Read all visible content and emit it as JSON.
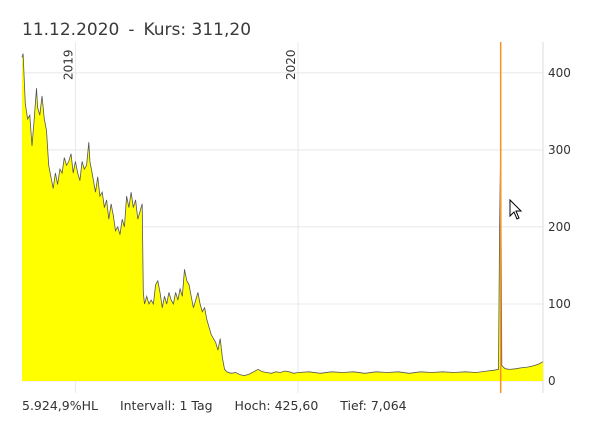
{
  "header": {
    "date": "11.12.2020",
    "separator": "-",
    "price_label": "Kurs: 311,20"
  },
  "footer": {
    "change": "5.924,9%HL",
    "interval": "Intervall: 1 Tag",
    "high": "Hoch: 425,60",
    "low": "Tief: 7,064"
  },
  "colors": {
    "area_fill": "#ffff00",
    "line": "#555555",
    "cursor": "#f7931e",
    "grid": "#e8e8e8"
  },
  "chart_data": {
    "type": "area",
    "x_ticks": [
      {
        "label": "2019",
        "x": 2019.0
      },
      {
        "label": "2020",
        "x": 2020.0
      }
    ],
    "y_ticks": [
      "0",
      "100",
      "200",
      "300",
      "400"
    ],
    "ylim": [
      0,
      440
    ],
    "xlim": [
      2018.76,
      2021.1
    ],
    "series": [
      {
        "points": [
          [
            2018.76,
            420
          ],
          [
            2018.765,
            425
          ],
          [
            2018.775,
            360
          ],
          [
            2018.785,
            340
          ],
          [
            2018.795,
            345
          ],
          [
            2018.805,
            305
          ],
          [
            2018.815,
            340
          ],
          [
            2018.825,
            380
          ],
          [
            2018.83,
            355
          ],
          [
            2018.84,
            345
          ],
          [
            2018.85,
            370
          ],
          [
            2018.86,
            340
          ],
          [
            2018.87,
            325
          ],
          [
            2018.88,
            280
          ],
          [
            2018.89,
            265
          ],
          [
            2018.9,
            250
          ],
          [
            2018.91,
            270
          ],
          [
            2018.92,
            255
          ],
          [
            2018.93,
            275
          ],
          [
            2018.94,
            270
          ],
          [
            2018.95,
            290
          ],
          [
            2018.96,
            280
          ],
          [
            2018.97,
            285
          ],
          [
            2018.98,
            295
          ],
          [
            2018.99,
            270
          ],
          [
            2019.0,
            285
          ],
          [
            2019.01,
            270
          ],
          [
            2019.02,
            260
          ],
          [
            2019.03,
            285
          ],
          [
            2019.04,
            275
          ],
          [
            2019.05,
            280
          ],
          [
            2019.06,
            310
          ],
          [
            2019.065,
            285
          ],
          [
            2019.075,
            270
          ],
          [
            2019.09,
            245
          ],
          [
            2019.1,
            265
          ],
          [
            2019.11,
            240
          ],
          [
            2019.12,
            245
          ],
          [
            2019.13,
            225
          ],
          [
            2019.14,
            235
          ],
          [
            2019.15,
            210
          ],
          [
            2019.16,
            230
          ],
          [
            2019.17,
            215
          ],
          [
            2019.18,
            195
          ],
          [
            2019.19,
            200
          ],
          [
            2019.2,
            190
          ],
          [
            2019.21,
            210
          ],
          [
            2019.22,
            200
          ],
          [
            2019.23,
            240
          ],
          [
            2019.24,
            225
          ],
          [
            2019.25,
            245
          ],
          [
            2019.26,
            225
          ],
          [
            2019.27,
            235
          ],
          [
            2019.28,
            210
          ],
          [
            2019.29,
            220
          ],
          [
            2019.3,
            230
          ],
          [
            2019.305,
            115
          ],
          [
            2019.31,
            100
          ],
          [
            2019.32,
            110
          ],
          [
            2019.33,
            100
          ],
          [
            2019.34,
            105
          ],
          [
            2019.35,
            100
          ],
          [
            2019.36,
            125
          ],
          [
            2019.37,
            130
          ],
          [
            2019.38,
            115
          ],
          [
            2019.39,
            95
          ],
          [
            2019.4,
            110
          ],
          [
            2019.41,
            100
          ],
          [
            2019.42,
            115
          ],
          [
            2019.43,
            105
          ],
          [
            2019.44,
            100
          ],
          [
            2019.45,
            115
          ],
          [
            2019.46,
            105
          ],
          [
            2019.47,
            120
          ],
          [
            2019.48,
            110
          ],
          [
            2019.49,
            145
          ],
          [
            2019.5,
            130
          ],
          [
            2019.51,
            125
          ],
          [
            2019.52,
            110
          ],
          [
            2019.53,
            95
          ],
          [
            2019.54,
            105
          ],
          [
            2019.55,
            115
          ],
          [
            2019.56,
            100
          ],
          [
            2019.57,
            90
          ],
          [
            2019.58,
            95
          ],
          [
            2019.59,
            80
          ],
          [
            2019.6,
            70
          ],
          [
            2019.61,
            60
          ],
          [
            2019.62,
            55
          ],
          [
            2019.63,
            50
          ],
          [
            2019.64,
            40
          ],
          [
            2019.65,
            55
          ],
          [
            2019.66,
            30
          ],
          [
            2019.67,
            15
          ],
          [
            2019.68,
            12
          ],
          [
            2019.7,
            10
          ],
          [
            2019.72,
            11
          ],
          [
            2019.74,
            8
          ],
          [
            2019.76,
            7
          ],
          [
            2019.78,
            9
          ],
          [
            2019.8,
            12
          ],
          [
            2019.82,
            15
          ],
          [
            2019.84,
            12
          ],
          [
            2019.86,
            11
          ],
          [
            2019.88,
            10
          ],
          [
            2019.9,
            12
          ],
          [
            2019.92,
            11
          ],
          [
            2019.94,
            13
          ],
          [
            2019.96,
            12
          ],
          [
            2019.98,
            10
          ],
          [
            2020.0,
            11
          ],
          [
            2020.05,
            12
          ],
          [
            2020.1,
            10
          ],
          [
            2020.15,
            12
          ],
          [
            2020.2,
            11
          ],
          [
            2020.25,
            12
          ],
          [
            2020.3,
            10
          ],
          [
            2020.35,
            12
          ],
          [
            2020.4,
            11
          ],
          [
            2020.45,
            12
          ],
          [
            2020.5,
            10
          ],
          [
            2020.55,
            12
          ],
          [
            2020.6,
            11
          ],
          [
            2020.65,
            12
          ],
          [
            2020.7,
            11
          ],
          [
            2020.75,
            12
          ],
          [
            2020.8,
            11
          ],
          [
            2020.85,
            13
          ],
          [
            2020.88,
            14
          ],
          [
            2020.9,
            15
          ],
          [
            2020.905,
            200
          ],
          [
            2020.91,
            311
          ],
          [
            2020.915,
            20
          ],
          [
            2020.93,
            16
          ],
          [
            2020.95,
            15
          ],
          [
            2020.98,
            16
          ],
          [
            2021.0,
            17
          ],
          [
            2021.03,
            18
          ],
          [
            2021.06,
            20
          ],
          [
            2021.08,
            22
          ],
          [
            2021.1,
            25
          ]
        ]
      }
    ],
    "cursor_x": 2020.91
  }
}
